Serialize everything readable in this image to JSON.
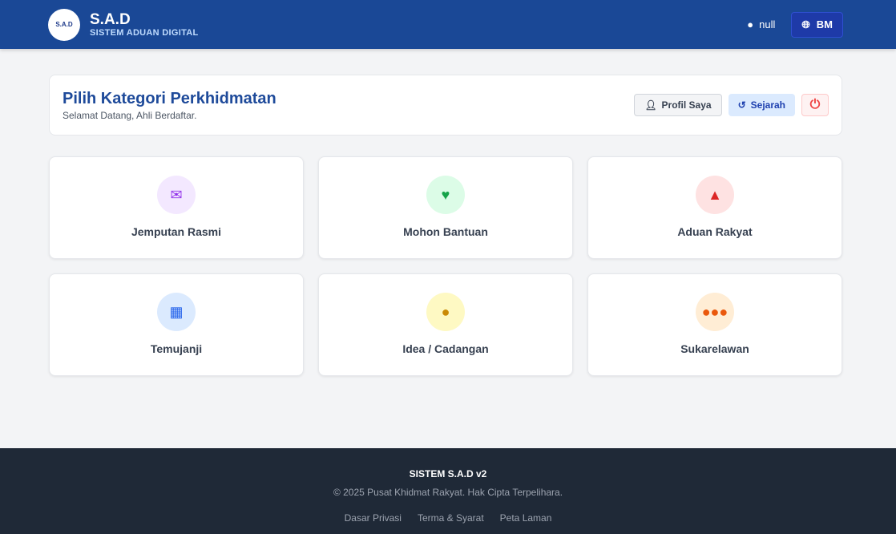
{
  "header": {
    "logo_text": "S.A.D",
    "title": "S.A.D",
    "subtitle": "SISTEM ADUAN DIGITAL",
    "user": "null",
    "lang": "BM"
  },
  "panel": {
    "title": "Pilih Kategori Perkhidmatan",
    "welcome": "Selamat Datang, Ahli Berdaftar.",
    "profile": "Profil Saya",
    "history": "Sejarah"
  },
  "services": [
    {
      "label": "Jemputan Rasmi",
      "icon": "envelope-open-icon",
      "bg": "#f3e8ff",
      "fg": "#9333ea"
    },
    {
      "label": "Mohon Bantuan",
      "icon": "hand-holding-heart-icon",
      "bg": "#dcfce7",
      "fg": "#16a34a"
    },
    {
      "label": "Aduan Rakyat",
      "icon": "warning-icon",
      "bg": "#fee2e2",
      "fg": "#dc2626"
    },
    {
      "label": "Temujanji",
      "icon": "calendar-check-icon",
      "bg": "#dbeafe",
      "fg": "#2563eb"
    },
    {
      "label": "Idea / Cadangan",
      "icon": "lightbulb-icon",
      "bg": "#fef9c3",
      "fg": "#ca8a04"
    },
    {
      "label": "Sukarelawan",
      "icon": "users-icon",
      "bg": "#ffedd5",
      "fg": "#ea580c"
    }
  ],
  "footer": {
    "title": "SISTEM S.A.D v2",
    "copyright": "© 2025 Pusat Khidmat Rakyat. Hak Cipta Terpelihara.",
    "links": [
      "Dasar Privasi",
      "Terma & Syarat",
      "Peta Laman"
    ]
  }
}
